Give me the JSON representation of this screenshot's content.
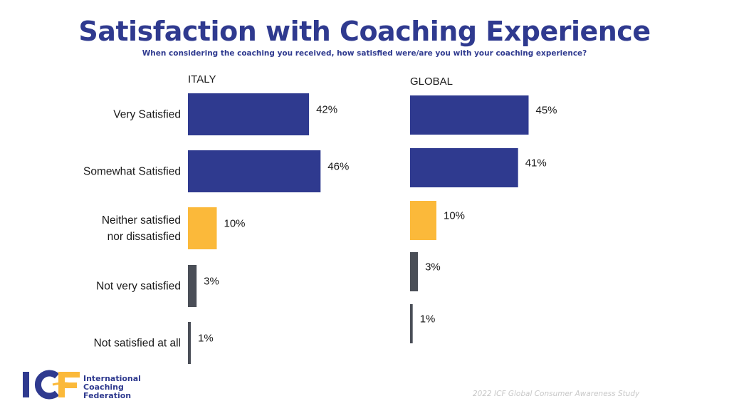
{
  "header": {
    "title": "Satisfaction with Coaching Experience",
    "subtitle": "When considering the coaching you received, how satisfied were/are you with your coaching experience?"
  },
  "colors": {
    "satisfied": "#2f3a8f",
    "neutral": "#fbb93a",
    "dissatisfied": "#4a4e57",
    "title": "#2f3a8f"
  },
  "chart_data": [
    {
      "type": "bar",
      "orientation": "horizontal",
      "title": "ITALY",
      "categories": [
        [
          "Very Satisfied"
        ],
        [
          "Somewhat Satisfied"
        ],
        [
          "Neither satisfied",
          "nor dissatisfied"
        ],
        [
          "Not very satisfied"
        ],
        [
          "Not satisfied at all"
        ]
      ],
      "values": [
        42,
        46,
        10,
        3,
        1
      ],
      "labels": [
        "42%",
        "46%",
        "10%",
        "3%",
        "1%"
      ],
      "bar_colors": [
        "satisfied",
        "satisfied",
        "neutral",
        "dissatisfied",
        "dissatisfied"
      ],
      "unit": "%"
    },
    {
      "type": "bar",
      "orientation": "horizontal",
      "title": "GLOBAL",
      "categories": [
        [
          "Very Satisfied"
        ],
        [
          "Somewhat Satisfied"
        ],
        [
          "Neither satisfied",
          "nor dissatisfied"
        ],
        [
          "Not very satisfied"
        ],
        [
          "Not satisfied at all"
        ]
      ],
      "values": [
        45,
        41,
        10,
        3,
        1
      ],
      "labels": [
        "45%",
        "41%",
        "10%",
        "3%",
        "1%"
      ],
      "bar_colors": [
        "satisfied",
        "satisfied",
        "neutral",
        "dissatisfied",
        "dissatisfied"
      ],
      "unit": "%"
    }
  ],
  "logo": {
    "mark": "ICF",
    "lines": [
      "International",
      "Coaching",
      "Federation"
    ]
  },
  "footer": {
    "source": "2022 ICF Global Consumer Awareness Study"
  }
}
